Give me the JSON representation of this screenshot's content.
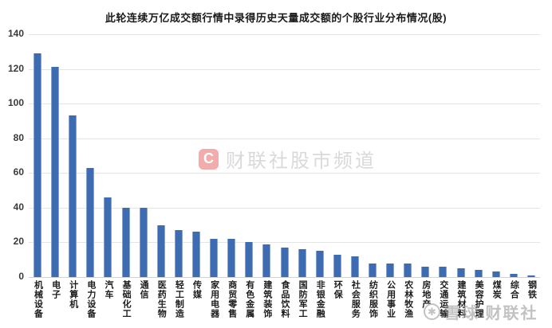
{
  "title": "此轮连续万亿成交额行情中录得历史天量成交额的个股行业分布情况(股)",
  "chart_data": {
    "type": "bar",
    "title": "此轮连续万亿成交额行情中录得历史天量成交额的个股行业分布情况(股)",
    "categories": [
      "机械设备",
      "电子",
      "计算机",
      "电力设备",
      "汽车",
      "基础化工",
      "通信",
      "医药生物",
      "轻工制造",
      "传媒",
      "家用电器",
      "商贸零售",
      "有色金属",
      "建筑装饰",
      "食品饮料",
      "国防军工",
      "非银金融",
      "环保",
      "社会服务",
      "纺织服饰",
      "公用事业",
      "农林牧渔",
      "房地产",
      "交通运输",
      "建筑材料",
      "美容护理",
      "煤炭",
      "综合",
      "钢铁"
    ],
    "values": [
      129,
      121,
      93,
      63,
      46,
      40,
      40,
      30,
      27,
      26,
      22,
      22,
      20,
      19,
      17,
      16,
      15,
      13,
      12,
      8,
      8,
      8,
      6,
      6,
      5,
      4,
      3,
      2,
      1
    ],
    "xlabel": "",
    "ylabel": "",
    "ylim": [
      0,
      140
    ],
    "yticks": [
      0,
      20,
      40,
      60,
      80,
      100,
      120,
      140
    ],
    "grid": true,
    "legend_position": "none",
    "bar_color": "#3E6CB3"
  },
  "watermark_center": {
    "logo_letter": "C",
    "logo_color": "#E24848",
    "text": "财联社股市频道"
  },
  "watermark_bottom_right": {
    "icon": "snowflake",
    "icon_glyph": "✱",
    "text": "雪球 财联社"
  }
}
